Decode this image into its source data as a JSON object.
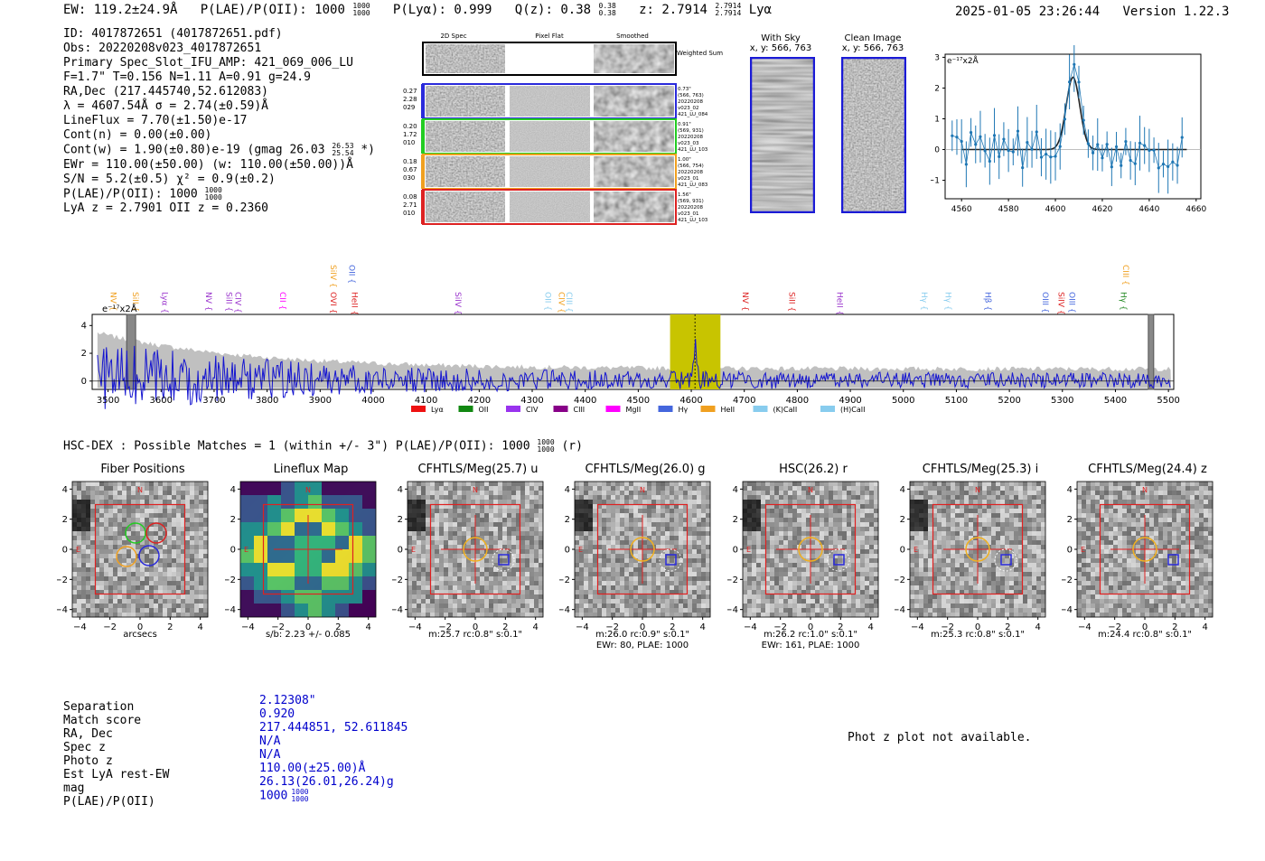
{
  "header": {
    "ew": "EW: 119.2±24.9Å",
    "plae_label": "P(LAE)/P(OII): 1000",
    "plae_hi": "1000",
    "plae_lo": "1000",
    "plya": "P(Lyα): 0.999",
    "qz_label": "Q(z): 0.38",
    "qz_hi": "0.38",
    "qz_lo": "0.38",
    "z_label": "z: 2.7914",
    "z_hi": "2.7914",
    "z_lo": "2.7914",
    "z_line": "Lyα",
    "timestamp": "2025-01-05 23:26:44",
    "version": "Version 1.22.3"
  },
  "info": {
    "id": "ID: 4017872651 (4017872651.pdf)",
    "obs": "Obs: 20220208v023_4017872651",
    "primary": "Primary Spec_Slot_IFU_AMP: 421_069_006_LU",
    "fit": "F=1.7\"  T=0.156  N=1.11  A=0.91  g=24.9",
    "radec": "RA,Dec (217.445740,52.612083)",
    "lambda": "λ = 4607.54Å  σ = 2.74(±0.59)Å",
    "lineflux": "LineFlux = 7.70(±1.50)e-17",
    "contn": "Cont(n) = 0.00(±0.00)",
    "contw": "Cont(w) = 1.90(±0.80)e-19 (gmag 26.03",
    "contw_hi": "26.53",
    "contw_lo": "25.54",
    "contw_end": "*)",
    "ewr": "EWr = 110.00(±50.00) (w: 110.00(±50.00))Å",
    "sn": "S/N = 5.2(±0.5)  χ² = 0.9(±0.2)",
    "plae": "P(LAE)/P(OII): 1000",
    "plae_hi": "1000",
    "plae_lo": "1000",
    "lyaz": "LyA z = 2.7901  OII z = 0.2360"
  },
  "spec2d": {
    "col_titles": [
      "2D Spec",
      "Pixel Flat",
      "Smoothed"
    ],
    "weighted_sum": "Weighted Sum",
    "rows": [
      {
        "left": [
          "0.27",
          "2.28",
          "029"
        ],
        "right": [
          "0.73\"",
          "(566, 763)",
          "20220208",
          "v023_02",
          "421_LU_084"
        ],
        "color": "#2a2adb"
      },
      {
        "left": [
          "0.20",
          "1.72",
          "010"
        ],
        "right": [
          "0.91\"",
          "(569, 931)",
          "20220208",
          "v023_03",
          "421_LU_103"
        ],
        "color": "#22cc22"
      },
      {
        "left": [
          "0.18",
          "0.67",
          "030"
        ],
        "right": [
          "1.00\"",
          "(566, 754)",
          "20220208",
          "v023_01",
          "421_LU_083"
        ],
        "color": "#f0a020"
      },
      {
        "left": [
          "0.08",
          "2.71",
          "010"
        ],
        "right": [
          "1.56\"",
          "(569, 931)",
          "20220208",
          "v023_01",
          "421_LU_103"
        ],
        "color": "#dd2222"
      }
    ]
  },
  "sky": {
    "with_sky_title": "With Sky",
    "with_sky_xy": "x, y: 566, 763",
    "clean_title": "Clean Image",
    "clean_xy": "x, y: 566, 763"
  },
  "zoom_plot": {
    "unit": "e⁻¹⁷x2Å",
    "yticks": [
      "3",
      "2",
      "1",
      "0",
      "−1"
    ],
    "xticks": [
      "4560",
      "4580",
      "4600",
      "4620",
      "4640",
      "4660"
    ]
  },
  "full_spec": {
    "unit": "e⁻¹⁷x2Å",
    "yticks": [
      "4",
      "2",
      "0"
    ],
    "xticks": [
      "3500",
      "3600",
      "3700",
      "3800",
      "3900",
      "4000",
      "4100",
      "4200",
      "4300",
      "4400",
      "4500",
      "4600",
      "4700",
      "4800",
      "4900",
      "5000",
      "5100",
      "5200",
      "5300",
      "5400",
      "5500"
    ],
    "lines": [
      {
        "name": "NV",
        "x": 3510,
        "row": 1,
        "color": "#f0a020"
      },
      {
        "name": "SiII",
        "x": 3552,
        "row": 1,
        "color": "#f0a020"
      },
      {
        "name": "Lyα",
        "x": 3607,
        "row": 1,
        "color": "#9933cc"
      },
      {
        "name": "NV",
        "x": 3690,
        "row": 1,
        "color": "#9933cc"
      },
      {
        "name": "SiII",
        "x": 3728,
        "row": 1,
        "color": "#9933cc"
      },
      {
        "name": "CIV",
        "x": 3745,
        "row": 1,
        "color": "#9933cc"
      },
      {
        "name": "CII",
        "x": 3830,
        "row": 1,
        "color": "#ff00ff"
      },
      {
        "name": "SiIV",
        "x": 3925,
        "row": 0,
        "color": "#f0a020"
      },
      {
        "name": "OII",
        "x": 3960,
        "row": 0,
        "color": "#4466dd"
      },
      {
        "name": "OVI",
        "x": 3925,
        "row": 1,
        "color": "#dd2222"
      },
      {
        "name": "HeII",
        "x": 3965,
        "row": 1,
        "color": "#dd2222"
      },
      {
        "name": "SiIV",
        "x": 4160,
        "row": 1,
        "color": "#9933cc"
      },
      {
        "name": "OII",
        "x": 4330,
        "row": 1,
        "color": "#88ccee"
      },
      {
        "name": "CIV",
        "x": 4355,
        "row": 1,
        "color": "#f0a020"
      },
      {
        "name": "CIII",
        "x": 4370,
        "row": 1,
        "color": "#88ccee"
      },
      {
        "name": "NV",
        "x": 4702,
        "row": 1,
        "color": "#dd2222"
      },
      {
        "name": "SiII",
        "x": 4790,
        "row": 1,
        "color": "#dd2222"
      },
      {
        "name": "HeII",
        "x": 4880,
        "row": 1,
        "color": "#9933cc"
      },
      {
        "name": "Hγ",
        "x": 5040,
        "row": 1,
        "color": "#88ccee"
      },
      {
        "name": "Hγ",
        "x": 5085,
        "row": 1,
        "color": "#88ccee"
      },
      {
        "name": "Hβ",
        "x": 5160,
        "row": 1,
        "color": "#4466dd"
      },
      {
        "name": "OIII",
        "x": 5268,
        "row": 1,
        "color": "#4466dd"
      },
      {
        "name": "SiIV",
        "x": 5298,
        "row": 1,
        "color": "#dd2222"
      },
      {
        "name": "OIII",
        "x": 5318,
        "row": 1,
        "color": "#4466dd"
      },
      {
        "name": "CIII",
        "x": 5420,
        "row": 0,
        "color": "#f0a020"
      },
      {
        "name": "Hγ",
        "x": 5415,
        "row": 1,
        "color": "#228822"
      }
    ],
    "legend": [
      {
        "label": "Lyα",
        "color": "#ee1111"
      },
      {
        "label": "OII",
        "color": "#118811"
      },
      {
        "label": "CIV",
        "color": "#9933ee"
      },
      {
        "label": "CIII",
        "color": "#880088"
      },
      {
        "label": "MgII",
        "color": "#ff00ff"
      },
      {
        "label": "Hγ",
        "color": "#4466dd"
      },
      {
        "label": "HeII",
        "color": "#f0a020"
      },
      {
        "label": "(K)CaII",
        "color": "#88ccee"
      },
      {
        "label": "(H)CaII",
        "color": "#88ccee"
      }
    ]
  },
  "hsc": {
    "title": "HSC-DEX : Possible Matches = 1 (within +/- 3\")  P(LAE)/P(OII): 1000",
    "title_hi": "1000",
    "title_lo": "1000",
    "title_end": "(r)"
  },
  "cutouts": [
    {
      "title": "Fiber Positions",
      "cap1": "arcsecs",
      "cap2": ""
    },
    {
      "title": "Lineflux Map",
      "cap1": "s/b: 2.23 +/- 0.085",
      "cap2": ""
    },
    {
      "title": "CFHTLS/Meg(25.7) u",
      "cap1": "m:25.7 rc:0.8\"  s:0.1\"",
      "cap2": ""
    },
    {
      "title": "CFHTLS/Meg(26.0) g",
      "cap1": "m:26.0 rc:0.9\"  s:0.1\"",
      "cap2": "EWr: 80, PLAE: 1000"
    },
    {
      "title": "HSC(26.2) r",
      "cap1": "m:26.2 rc:1.0\"  s:0.1\"",
      "cap2": "EWr: 161, PLAE: 1000"
    },
    {
      "title": "CFHTLS/Meg(25.3) i",
      "cap1": "m:25.3 rc:0.8\"  s:0.1\"",
      "cap2": ""
    },
    {
      "title": "CFHTLS/Meg(24.4) z",
      "cap1": "m:24.4 rc:0.8\"  s:0.1\"",
      "cap2": ""
    }
  ],
  "cut_axes": {
    "yticks": [
      "4",
      "2",
      "0",
      "−2",
      "−4"
    ],
    "xticks": [
      "−4",
      "−2",
      "0",
      "2",
      "4"
    ],
    "compass_n": "N",
    "compass_e": "E"
  },
  "match_table": {
    "keys": [
      "Separation",
      "Match score",
      "RA, Dec",
      "Spec z",
      "Photo z",
      "Est LyA rest-EW",
      "mag",
      "P(LAE)/P(OII)"
    ],
    "values": [
      "2.12308\"",
      "0.920",
      "217.444851, 52.611845",
      "N/A",
      "N/A",
      "110.00(±25.00)Å",
      "26.13(26.01,26.24)g",
      "1000"
    ],
    "plae_hi": "1000",
    "plae_lo": "1000"
  },
  "photz_msg": "Phot z plot not available."
}
